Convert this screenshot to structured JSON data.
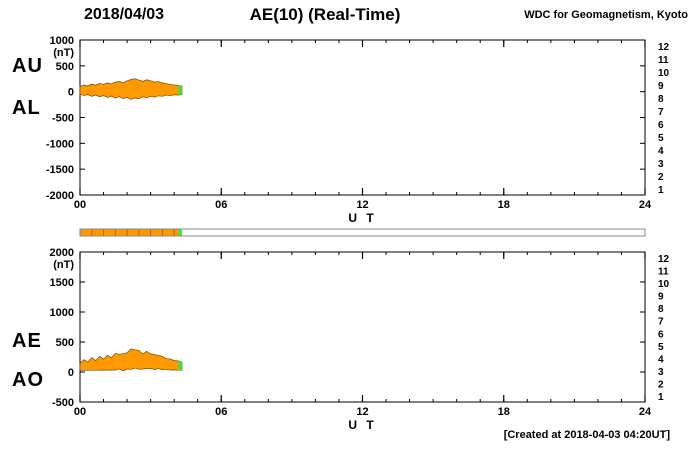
{
  "header": {
    "date": "2018/04/03",
    "title": "AE(10) (Real-Time)",
    "source": "WDC for Geomagnetism, Kyoto"
  },
  "footer": {
    "created_note": "[Created at 2018-04-03 04:20UT]"
  },
  "panel_labels": {
    "top_upper": "AU",
    "top_lower": "AL",
    "bottom_upper": "AE",
    "bottom_lower": "AO"
  },
  "station_numbers": [
    {
      "label": "12",
      "color": "#ff3399"
    },
    {
      "label": "11",
      "color": "#ff1111"
    },
    {
      "label": "10",
      "color": "#ff9900"
    },
    {
      "label": "9",
      "color": "#ffcc00"
    },
    {
      "label": "8",
      "color": "#00cccc"
    },
    {
      "label": "7",
      "color": "#3399ff"
    },
    {
      "label": "6",
      "color": "#2244ee"
    },
    {
      "label": "5",
      "color": "#8833ee"
    },
    {
      "label": "4",
      "color": "#cc33cc"
    },
    {
      "label": "3",
      "color": "#444444"
    },
    {
      "label": "2",
      "color": "#888888"
    },
    {
      "label": "1",
      "color": "#c8c8c8"
    }
  ],
  "chart_data": [
    {
      "type": "area",
      "name": "au-al",
      "title": "AU / AL real-time indices",
      "xlabel": "U T",
      "ylabel": "(nT)",
      "xlim": [
        0,
        24
      ],
      "xticks": [
        {
          "value": 0,
          "label": "00"
        },
        {
          "value": 6,
          "label": "06"
        },
        {
          "value": 12,
          "label": "12"
        },
        {
          "value": 18,
          "label": "18"
        },
        {
          "value": 24,
          "label": "24"
        }
      ],
      "ylim": [
        -2000,
        1000
      ],
      "yticks": [
        1000,
        500,
        0,
        -500,
        -1000,
        -1500,
        -2000
      ],
      "x_hours": [
        0,
        0.17,
        0.33,
        0.5,
        0.67,
        0.83,
        1,
        1.17,
        1.33,
        1.5,
        1.67,
        1.83,
        2,
        2.17,
        2.33,
        2.5,
        2.67,
        2.83,
        3,
        3.17,
        3.33,
        3.5,
        3.67,
        3.83,
        4,
        4.17,
        4.33
      ],
      "series": [
        {
          "name": "AU",
          "values": [
            100,
            130,
            110,
            150,
            125,
            160,
            140,
            170,
            150,
            185,
            200,
            170,
            210,
            235,
            250,
            225,
            200,
            230,
            210,
            185,
            195,
            170,
            155,
            140,
            130,
            120,
            110
          ]
        },
        {
          "name": "AL",
          "values": [
            -50,
            -75,
            -55,
            -90,
            -65,
            -100,
            -75,
            -110,
            -85,
            -125,
            -95,
            -135,
            -110,
            -150,
            -120,
            -135,
            -100,
            -115,
            -90,
            -105,
            -80,
            -90,
            -65,
            -80,
            -60,
            -65,
            -55
          ]
        }
      ],
      "fill_color": "#ff9900",
      "tip_color": "#44dd44",
      "tip_start_hour": 4.17
    },
    {
      "type": "area",
      "name": "ae-ao",
      "title": "AE / AO real-time indices",
      "xlabel": "U T",
      "ylabel": "(nT)",
      "xlim": [
        0,
        24
      ],
      "xticks": [
        {
          "value": 0,
          "label": "00"
        },
        {
          "value": 6,
          "label": "06"
        },
        {
          "value": 12,
          "label": "12"
        },
        {
          "value": 18,
          "label": "18"
        },
        {
          "value": 24,
          "label": "24"
        }
      ],
      "ylim": [
        -500,
        2000
      ],
      "yticks": [
        2000,
        1500,
        1000,
        500,
        0,
        -500
      ],
      "x_hours": [
        0,
        0.17,
        0.33,
        0.5,
        0.67,
        0.83,
        1,
        1.17,
        1.33,
        1.5,
        1.67,
        1.83,
        2,
        2.17,
        2.33,
        2.5,
        2.67,
        2.83,
        3,
        3.17,
        3.33,
        3.5,
        3.67,
        3.83,
        4,
        4.17,
        4.33
      ],
      "series": [
        {
          "name": "AE",
          "values": [
            150,
            205,
            165,
            240,
            190,
            260,
            215,
            280,
            235,
            310,
            295,
            305,
            320,
            385,
            370,
            360,
            300,
            345,
            300,
            290,
            275,
            260,
            220,
            220,
            190,
            185,
            165
          ]
        },
        {
          "name": "AO",
          "values": [
            25,
            28,
            28,
            30,
            30,
            30,
            33,
            30,
            33,
            30,
            53,
            18,
            50,
            43,
            65,
            45,
            50,
            58,
            60,
            40,
            58,
            40,
            45,
            30,
            35,
            28,
            28
          ]
        }
      ],
      "fill_color": "#ff9900",
      "tip_color": "#44dd44",
      "tip_start_hour": 4.17
    }
  ],
  "availability_bar": {
    "xlim": [
      0,
      24
    ],
    "segments": [
      {
        "start": 0,
        "end": 4.17,
        "color": "#ff9900"
      },
      {
        "start": 4.17,
        "end": 4.33,
        "color": "#44dd44"
      }
    ],
    "dividers": [
      0.5,
      1,
      1.5,
      2,
      2.5,
      3,
      3.5,
      4
    ]
  }
}
